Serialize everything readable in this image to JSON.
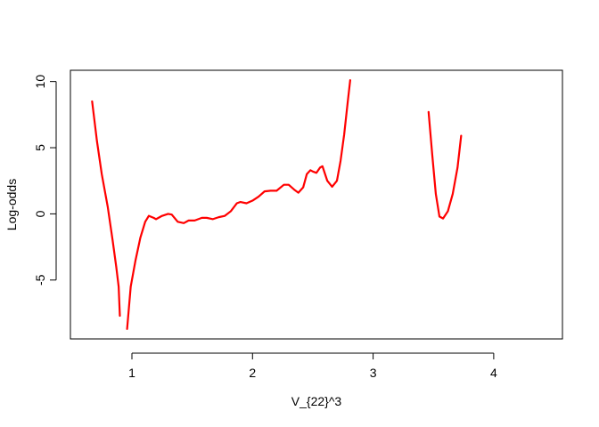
{
  "chart_data": {
    "type": "line",
    "title": "",
    "xlabel": "V_{22}^3",
    "ylabel": "Log-odds",
    "xlim": [
      0.49,
      4.57
    ],
    "ylim": [
      -9.45,
      10.85
    ],
    "x_ticks": [
      1,
      2,
      3,
      4
    ],
    "y_ticks": [
      -5,
      0,
      5,
      10
    ],
    "x_tick_labels": [
      "1",
      "2",
      "3",
      "4"
    ],
    "y_tick_labels": [
      "-5",
      "0",
      "5",
      "10"
    ],
    "grid": false,
    "legend": "none",
    "line_color": "#ff0000",
    "series": [
      {
        "segments": [
          [
            [
              0.67,
              8.5
            ],
            [
              0.71,
              5.5
            ],
            [
              0.75,
              3.0
            ],
            [
              0.8,
              0.5
            ],
            [
              0.84,
              -2.0
            ],
            [
              0.87,
              -4.0
            ],
            [
              0.89,
              -5.5
            ],
            [
              0.9,
              -7.7
            ]
          ],
          [
            [
              0.96,
              -8.7
            ],
            [
              0.99,
              -5.5
            ],
            [
              1.03,
              -3.5
            ],
            [
              1.07,
              -1.8
            ],
            [
              1.11,
              -0.6
            ],
            [
              1.14,
              -0.15
            ],
            [
              1.18,
              -0.3
            ],
            [
              1.2,
              -0.4
            ],
            [
              1.25,
              -0.15
            ],
            [
              1.3,
              0.0
            ],
            [
              1.33,
              -0.05
            ],
            [
              1.38,
              -0.6
            ],
            [
              1.43,
              -0.7
            ],
            [
              1.47,
              -0.5
            ],
            [
              1.52,
              -0.5
            ],
            [
              1.58,
              -0.3
            ],
            [
              1.62,
              -0.3
            ],
            [
              1.67,
              -0.4
            ],
            [
              1.72,
              -0.25
            ],
            [
              1.77,
              -0.15
            ],
            [
              1.82,
              0.2
            ],
            [
              1.87,
              0.8
            ],
            [
              1.9,
              0.9
            ],
            [
              1.95,
              0.8
            ],
            [
              2.0,
              1.0
            ],
            [
              2.05,
              1.3
            ],
            [
              2.1,
              1.7
            ],
            [
              2.15,
              1.75
            ],
            [
              2.2,
              1.75
            ],
            [
              2.26,
              2.2
            ],
            [
              2.3,
              2.2
            ],
            [
              2.35,
              1.8
            ],
            [
              2.38,
              1.6
            ],
            [
              2.42,
              2.0
            ],
            [
              2.45,
              3.0
            ],
            [
              2.48,
              3.3
            ],
            [
              2.5,
              3.2
            ],
            [
              2.53,
              3.1
            ],
            [
              2.56,
              3.5
            ],
            [
              2.58,
              3.6
            ],
            [
              2.62,
              2.5
            ],
            [
              2.66,
              2.05
            ],
            [
              2.7,
              2.5
            ],
            [
              2.73,
              4.0
            ],
            [
              2.76,
              6.0
            ],
            [
              2.79,
              8.5
            ],
            [
              2.81,
              10.1
            ]
          ],
          [
            [
              3.46,
              7.7
            ],
            [
              3.49,
              4.5
            ],
            [
              3.52,
              1.5
            ],
            [
              3.55,
              -0.2
            ],
            [
              3.58,
              -0.35
            ],
            [
              3.62,
              0.2
            ],
            [
              3.66,
              1.5
            ],
            [
              3.7,
              3.5
            ],
            [
              3.73,
              5.9
            ]
          ]
        ]
      }
    ]
  }
}
